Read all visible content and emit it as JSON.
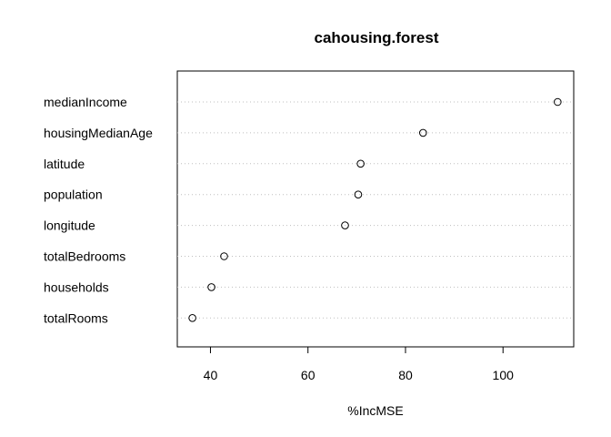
{
  "chart_data": {
    "type": "scatter",
    "subtype": "dotchart",
    "title": "cahousing.forest",
    "xlabel": "%IncMSE",
    "ylabel": "",
    "categories": [
      "medianIncome",
      "housingMedianAge",
      "latitude",
      "population",
      "longitude",
      "totalBedrooms",
      "households",
      "totalRooms"
    ],
    "values": [
      111.2,
      83.6,
      70.8,
      70.3,
      67.6,
      42.8,
      40.2,
      36.3
    ],
    "xlim": [
      33.2,
      114.5
    ],
    "xticks": [
      40,
      60,
      80,
      100
    ],
    "xtick_labels": [
      "40",
      "60",
      "80",
      "100"
    ],
    "grid": "dotted horizontal lines per category",
    "legend": "none",
    "colors": {
      "point_stroke": "#000000",
      "grid": "#bfbfbf",
      "frame": "#000000"
    }
  }
}
